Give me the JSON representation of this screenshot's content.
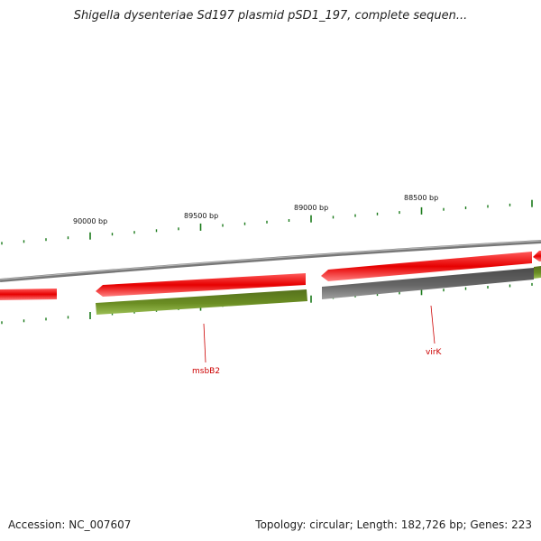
{
  "title": "Shigella dysenteriae Sd197 plasmid pSD1_197, complete sequen...",
  "footer": {
    "accession": "Accession: NC_007607",
    "summary": "Topology: circular; Length: 182,726 bp; Genes: 223"
  },
  "scale_labels": [
    "90000 bp",
    "89500 bp",
    "89000 bp",
    "88500 bp"
  ],
  "gene_labels": [
    "msbB2",
    "virK"
  ],
  "colors": {
    "backbone": "#8a8a8a",
    "forward_gene": "#e60000",
    "reverse_gene_green": "#6b8e23",
    "reverse_gene_gray": "#666666",
    "ticks": "#1a7a1a",
    "label": "#cc0000"
  }
}
